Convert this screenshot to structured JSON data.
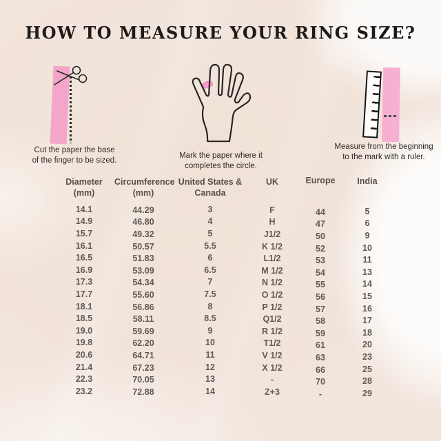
{
  "title": "HOW TO MEASURE YOUR RING SIZE?",
  "colors": {
    "background_beige": "#f2e5dc",
    "background_light": "#fcfaf8",
    "paper_strip_pink": "#f4a6ca",
    "ruler_strip_pink": "#f6b1d1",
    "ring_mark_pink": "#f173b6",
    "ink": "#262524",
    "title_text": "#1d1b1a",
    "caption_text": "#2d2b29",
    "header_text": "#56504b",
    "cell_text": "#5d5b59"
  },
  "icons": [
    "scissors-icon",
    "paper-strip",
    "cut-dashed-line",
    "hand-icon",
    "ring-mark",
    "ruler-icon",
    "measure-mark"
  ],
  "steps": [
    {
      "caption_line1": "Cut the paper the base",
      "caption_line2": "of the finger to be sized."
    },
    {
      "caption_line1": "Mark the paper where it",
      "caption_line2": "completes the circle."
    },
    {
      "caption_line1": "Measure from the beginning",
      "caption_line2": "to the mark with a ruler."
    }
  ],
  "table": {
    "headers": [
      {
        "line1": "Diameter",
        "line2": "(mm)"
      },
      {
        "line1": "Circumference",
        "line2": "(mm)"
      },
      {
        "line1": "United States &",
        "line2": "Canada"
      },
      {
        "line1": "UK",
        "line2": ""
      },
      {
        "line1": "Europe",
        "line2": ""
      },
      {
        "line1": "India",
        "line2": ""
      }
    ],
    "rows": [
      [
        "14.1",
        "44.29",
        "3",
        "F",
        "44",
        "5"
      ],
      [
        "14.9",
        "46.80",
        "4",
        "H",
        "47",
        "6"
      ],
      [
        "15.7",
        "49.32",
        "5",
        "J1/2",
        "50",
        "9"
      ],
      [
        "16.1",
        "50.57",
        "5.5",
        "K 1/2",
        "52",
        "10"
      ],
      [
        "16.5",
        "51.83",
        "6",
        "L1/2",
        "53",
        "11"
      ],
      [
        "16.9",
        "53.09",
        "6.5",
        "M 1/2",
        "54",
        "13"
      ],
      [
        "17.3",
        "54.34",
        "7",
        "N 1/2",
        "55",
        "14"
      ],
      [
        "17.7",
        "55.60",
        "7.5",
        "O 1/2",
        "56",
        "15"
      ],
      [
        "18.1",
        "56.86",
        "8",
        "P 1/2",
        "57",
        "16"
      ],
      [
        "18.5",
        "58.11",
        "8.5",
        "Q1/2",
        "58",
        "17"
      ],
      [
        "19.0",
        "59.69",
        "9",
        "R 1/2",
        "59",
        "18"
      ],
      [
        "19.8",
        "62.20",
        "10",
        "T1/2",
        "61",
        "20"
      ],
      [
        "20.6",
        "64.71",
        "11",
        "V 1/2",
        "63",
        "23"
      ],
      [
        "21.4",
        "67.23",
        "12",
        "X 1/2",
        "66",
        "25"
      ],
      [
        "22.3",
        "70.05",
        "13",
        "-",
        "70",
        "28"
      ],
      [
        "23.2",
        "72.88",
        "14",
        "Z+3",
        "-",
        "29"
      ]
    ]
  }
}
